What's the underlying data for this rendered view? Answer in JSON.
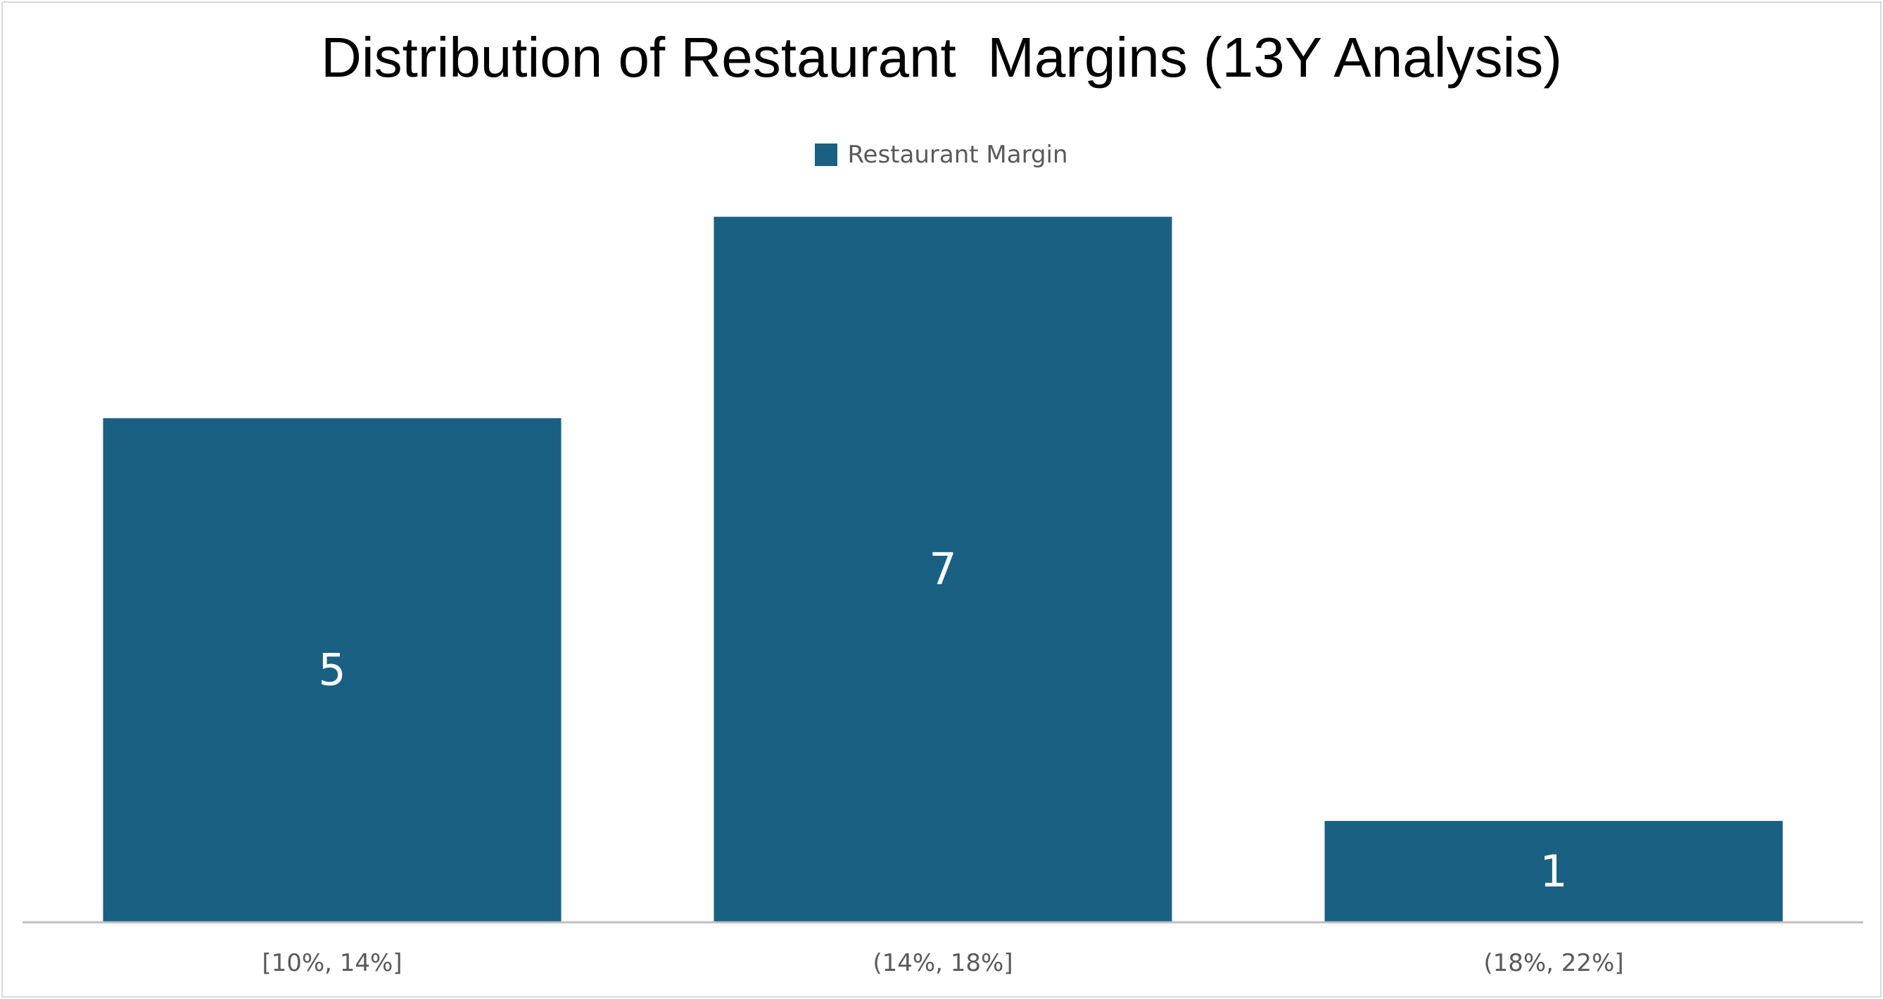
{
  "chart_data": {
    "type": "bar",
    "title": "Distribution of Restaurant  Margins (13Y Analysis)",
    "xlabel": "",
    "ylabel": "",
    "categories": [
      "[10%, 14%]",
      "(14%, 18%]",
      "(18%, 22%]"
    ],
    "series": [
      {
        "name": "Restaurant Margin",
        "values": [
          5,
          7,
          1
        ],
        "color": "#1a6082"
      }
    ],
    "ylim": [
      0,
      8
    ],
    "grid": false,
    "legend_position": "top",
    "data_labels": "center"
  }
}
